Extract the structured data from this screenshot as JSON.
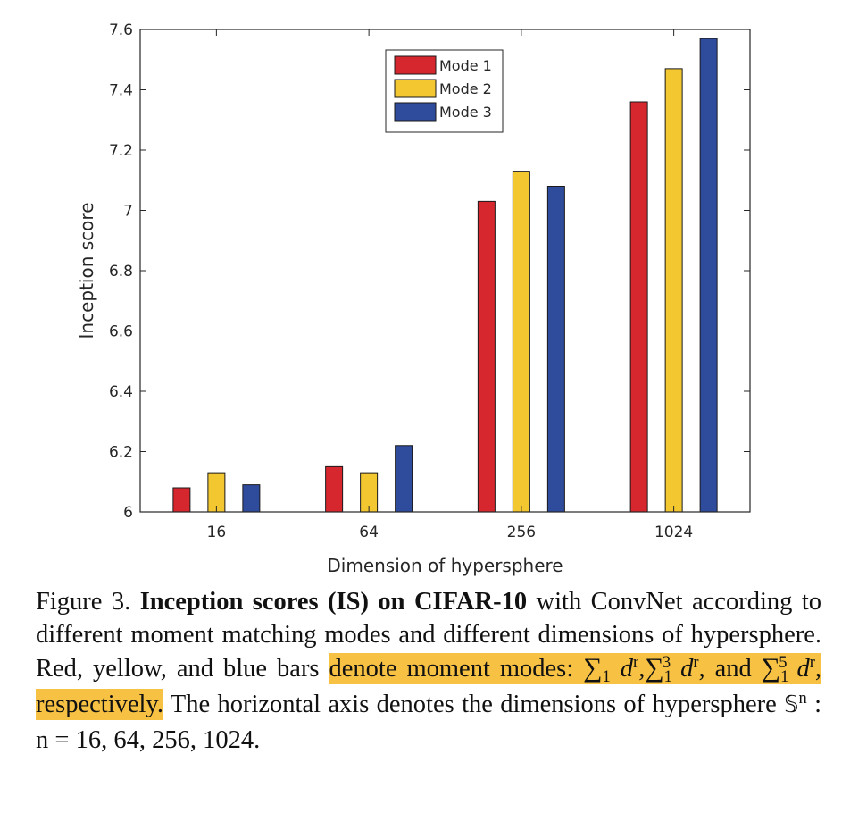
{
  "chart_data": {
    "type": "bar",
    "categories": [
      "16",
      "64",
      "256",
      "1024"
    ],
    "series": [
      {
        "name": "Mode 1",
        "color": "#d7272e",
        "values": [
          6.08,
          6.15,
          7.03,
          7.36
        ]
      },
      {
        "name": "Mode 2",
        "color": "#f2c730",
        "values": [
          6.13,
          6.13,
          7.13,
          7.47
        ]
      },
      {
        "name": "Mode 3",
        "color": "#2f4b9c",
        "values": [
          6.09,
          6.22,
          7.08,
          7.57
        ]
      }
    ],
    "xlabel": "Dimension of hypersphere",
    "ylabel": "Inception score",
    "ylim": [
      6,
      7.6
    ],
    "yticks": [
      "6",
      "6.2",
      "6.4",
      "6.6",
      "6.8",
      "7",
      "7.2",
      "7.4",
      "7.6"
    ],
    "legend_position": "top-center",
    "grid": false
  },
  "caption": {
    "label": "Figure 3.",
    "bold": "Inception scores (IS) on CIFAR-10",
    "text1": " with ConvNet according to different moment matching modes and different dimensions of hypersphere. Red, yellow, and blue bars ",
    "hl1": "denote moment modes: ",
    "hl_and": ", and ",
    "hl_end": ", respectively.",
    "text2": " The horizontal axis denotes the dimensions of hypersphere ",
    "text3": " : n = 16, 64, 256, 1024.",
    "sigma": "∑",
    "var_d": "d",
    "exp_r": "r",
    "sub_1": "1",
    "sup_3": "3",
    "sup_5": "5",
    "sphere": "𝕊",
    "exp_n": "n",
    "comma": ","
  }
}
